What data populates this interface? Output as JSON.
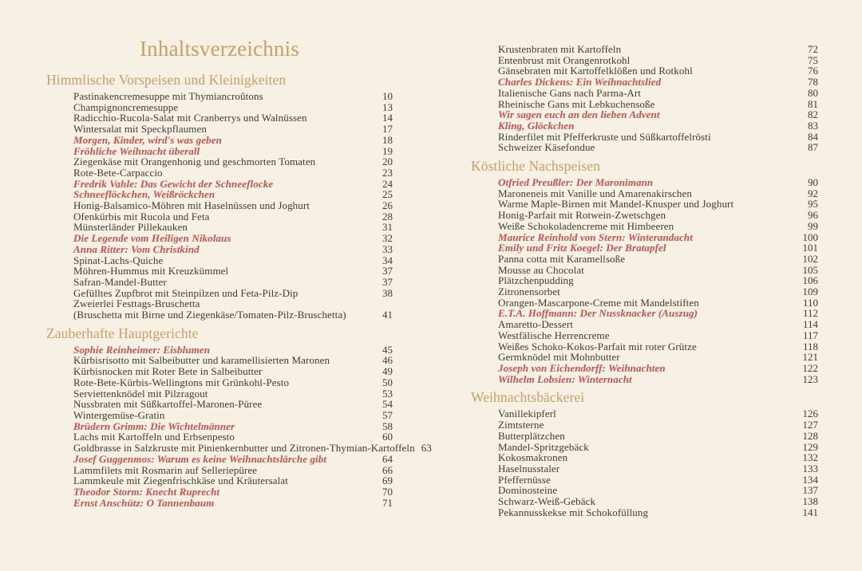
{
  "title": "Inhaltsverzeichnis",
  "colors": {
    "background": "#f6f0e5",
    "accent_gold": "#c6a065",
    "story_red": "#c4534f",
    "text": "#403a31"
  },
  "sections": {
    "starters": {
      "heading": "Himmlische Vorspeisen und Kleinigkeiten",
      "entries": [
        {
          "label": "Pastinakencremesuppe mit Thymiancroûtons",
          "page": "10",
          "kind": "recipe"
        },
        {
          "label": "Champignoncremesuppe",
          "page": "13",
          "kind": "recipe"
        },
        {
          "label": "Radicchio-Rucola-Salat mit Cranberrys und Walnüssen",
          "page": "14",
          "kind": "recipe"
        },
        {
          "label": "Wintersalat mit Speckpflaumen",
          "page": "17",
          "kind": "recipe"
        },
        {
          "label": "Morgen, Kinder, wird's was geben",
          "page": "18",
          "kind": "story"
        },
        {
          "label": "Fröhliche Weihnacht überall",
          "page": "19",
          "kind": "story"
        },
        {
          "label": "Ziegenkäse mit Orangenhonig und geschmorten Tomaten",
          "page": "20",
          "kind": "recipe"
        },
        {
          "label": "Rote-Bete-Carpaccio",
          "page": "23",
          "kind": "recipe"
        },
        {
          "label": "Fredrik Vahle: Das Gewicht der Schneeflocke",
          "page": "24",
          "kind": "story"
        },
        {
          "label": "Schneeflöckchen, Weißröckchen",
          "page": "25",
          "kind": "story"
        },
        {
          "label": "Honig-Balsamico-Möhren mit Haselnüssen und Joghurt",
          "page": "26",
          "kind": "recipe"
        },
        {
          "label": "Ofenkürbis mit Rucola und Feta",
          "page": "28",
          "kind": "recipe"
        },
        {
          "label": "Münsterländer Pillekauken",
          "page": "31",
          "kind": "recipe"
        },
        {
          "label": "Die Legende vom Heiligen Nikolaus",
          "page": "32",
          "kind": "story"
        },
        {
          "label": "Anna Ritter: Vom Christkind",
          "page": "33",
          "kind": "story"
        },
        {
          "label": "Spinat-Lachs-Quiche",
          "page": "34",
          "kind": "recipe"
        },
        {
          "label": "Möhren-Hummus mit Kreuzkümmel",
          "page": "37",
          "kind": "recipe"
        },
        {
          "label": "Safran-Mandel-Butter",
          "page": "37",
          "kind": "recipe"
        },
        {
          "label": "Gefülltes Zupfbrot mit Steinpilzen und Feta-Pilz-Dip",
          "page": "38",
          "kind": "recipe"
        },
        {
          "label": "Zweierlei Festtags-Bruschetta",
          "page": "",
          "kind": "recipe"
        },
        {
          "label": "(Bruschetta mit Birne und Ziegenkäse/Tomaten-Pilz-Bruschetta)",
          "page": "41",
          "kind": "recipe"
        }
      ]
    },
    "mains": {
      "heading": "Zauberhafte Hauptgerichte",
      "entries": [
        {
          "label": "Sophie Reinheimer: Eisblumen",
          "page": "45",
          "kind": "story"
        },
        {
          "label": "Kürbisrisotto mit Salbeibutter und karamellisierten Maronen",
          "page": "46",
          "kind": "recipe"
        },
        {
          "label": "Kürbisnocken mit Roter Bete in Salbeibutter",
          "page": "49",
          "kind": "recipe"
        },
        {
          "label": "Rote-Bete-Kürbis-Wellingtons mit Grünkohl-Pesto",
          "page": "50",
          "kind": "recipe"
        },
        {
          "label": "Serviettenknödel mit Pilzragout",
          "page": "53",
          "kind": "recipe"
        },
        {
          "label": "Nussbraten mit Süßkartoffel-Maronen-Püree",
          "page": "54",
          "kind": "recipe"
        },
        {
          "label": "Wintergemüse-Gratin",
          "page": "57",
          "kind": "recipe"
        },
        {
          "label": "Brüdern Grimm: Die Wichtelmänner",
          "page": "58",
          "kind": "story"
        },
        {
          "label": "Lachs mit Kartoffeln und Erbsenpesto",
          "page": "60",
          "kind": "recipe"
        },
        {
          "label": "Goldbrasse in Salzkruste mit Pinienkernbutter und Zitronen-Thymian-Kartoffeln",
          "page": "63",
          "kind": "recipe"
        },
        {
          "label": "Josef Guggenmos: Warum es keine Weihnachtslärche gibt",
          "page": "64",
          "kind": "story"
        },
        {
          "label": "Lammfilets mit Rosmarin auf Selleriepüree",
          "page": "66",
          "kind": "recipe"
        },
        {
          "label": "Lammkeule mit Ziegenfrischkäse und Kräutersalat",
          "page": "69",
          "kind": "recipe"
        },
        {
          "label": "Theodor Storm: Knecht Ruprecht",
          "page": "70",
          "kind": "story"
        },
        {
          "label": "Ernst Anschütz: O Tannenbaum",
          "page": "71",
          "kind": "story"
        }
      ]
    },
    "mains_continued": {
      "entries": [
        {
          "label": "Krustenbraten mit Kartoffeln",
          "page": "72",
          "kind": "recipe"
        },
        {
          "label": "Entenbrust mit Orangenrotkohl",
          "page": "75",
          "kind": "recipe"
        },
        {
          "label": "Gänsebraten mit Kartoffelklößen und Rotkohl",
          "page": "76",
          "kind": "recipe"
        },
        {
          "label": "Charles Dickens: Ein Weihnachtslied",
          "page": "78",
          "kind": "story"
        },
        {
          "label": "Italienische Gans nach Parma-Art",
          "page": "80",
          "kind": "recipe"
        },
        {
          "label": "Rheinische Gans mit Lebkuchensoße",
          "page": "81",
          "kind": "recipe"
        },
        {
          "label": "Wir sagen euch an den lieben Advent",
          "page": "82",
          "kind": "story"
        },
        {
          "label": "Kling, Glöckchen",
          "page": "83",
          "kind": "story"
        },
        {
          "label": "Rinderfilet mit Pfefferkruste und Süßkartoffelrösti",
          "page": "84",
          "kind": "recipe"
        },
        {
          "label": "Schweizer Käsefondue",
          "page": "87",
          "kind": "recipe"
        }
      ]
    },
    "desserts": {
      "heading": "Köstliche Nachspeisen",
      "entries": [
        {
          "label": "Otfried Preußler: Der Maronimann",
          "page": "90",
          "kind": "story"
        },
        {
          "label": "Maroneneis mit Vanille und Amarenakirschen",
          "page": "92",
          "kind": "recipe"
        },
        {
          "label": "Warme Maple-Birnen mit Mandel-Knusper und Joghurt",
          "page": "95",
          "kind": "recipe"
        },
        {
          "label": "Honig-Parfait mit Rotwein-Zwetschgen",
          "page": "96",
          "kind": "recipe"
        },
        {
          "label": "Weiße Schokoladencreme mit Himbeeren",
          "page": "99",
          "kind": "recipe"
        },
        {
          "label": "Maurice Reinhold von Stern: Winterandacht",
          "page": "100",
          "kind": "story"
        },
        {
          "label": "Emily und Fritz Koegel: Der Bratapfel",
          "page": "101",
          "kind": "story"
        },
        {
          "label": "Panna cotta mit Karamellsoße",
          "page": "102",
          "kind": "recipe"
        },
        {
          "label": "Mousse au Chocolat",
          "page": "105",
          "kind": "recipe"
        },
        {
          "label": "Plätzchenpudding",
          "page": "106",
          "kind": "recipe"
        },
        {
          "label": "Zitronensorbet",
          "page": "109",
          "kind": "recipe"
        },
        {
          "label": "Orangen-Mascarpone-Creme mit Mandelstiften",
          "page": "110",
          "kind": "recipe"
        },
        {
          "label": "E.T.A. Hoffmann: Der Nussknacker (Auszug)",
          "page": "112",
          "kind": "story"
        },
        {
          "label": "Amaretto-Dessert",
          "page": "114",
          "kind": "recipe"
        },
        {
          "label": "Westfälische Herrencreme",
          "page": "117",
          "kind": "recipe"
        },
        {
          "label": "Weißes Schoko-Kokos-Parfait mit roter Grütze",
          "page": "118",
          "kind": "recipe"
        },
        {
          "label": "Germknödel mit Mohnbutter",
          "page": "121",
          "kind": "recipe"
        },
        {
          "label": "Joseph von Eichendorff: Weihnachten",
          "page": "122",
          "kind": "story"
        },
        {
          "label": "Wilhelm Lobsien: Winternacht",
          "page": "123",
          "kind": "story"
        }
      ]
    },
    "baking": {
      "heading": "Weihnachtsbäckerei",
      "entries": [
        {
          "label": "Vanillekipferl",
          "page": "126",
          "kind": "recipe"
        },
        {
          "label": "Zimtsterne",
          "page": "127",
          "kind": "recipe"
        },
        {
          "label": "Butterplätzchen",
          "page": "128",
          "kind": "recipe"
        },
        {
          "label": "Mandel-Spritzgebäck",
          "page": "129",
          "kind": "recipe"
        },
        {
          "label": "Kokosmakronen",
          "page": "132",
          "kind": "recipe"
        },
        {
          "label": "Haselnusstaler",
          "page": "133",
          "kind": "recipe"
        },
        {
          "label": "Pfeffernüsse",
          "page": "134",
          "kind": "recipe"
        },
        {
          "label": "Dominosteine",
          "page": "137",
          "kind": "recipe"
        },
        {
          "label": "Schwarz-Weiß-Gebäck",
          "page": "138",
          "kind": "recipe"
        },
        {
          "label": "Pekannusskekse mit Schokofüllung",
          "page": "141",
          "kind": "recipe"
        }
      ]
    }
  }
}
